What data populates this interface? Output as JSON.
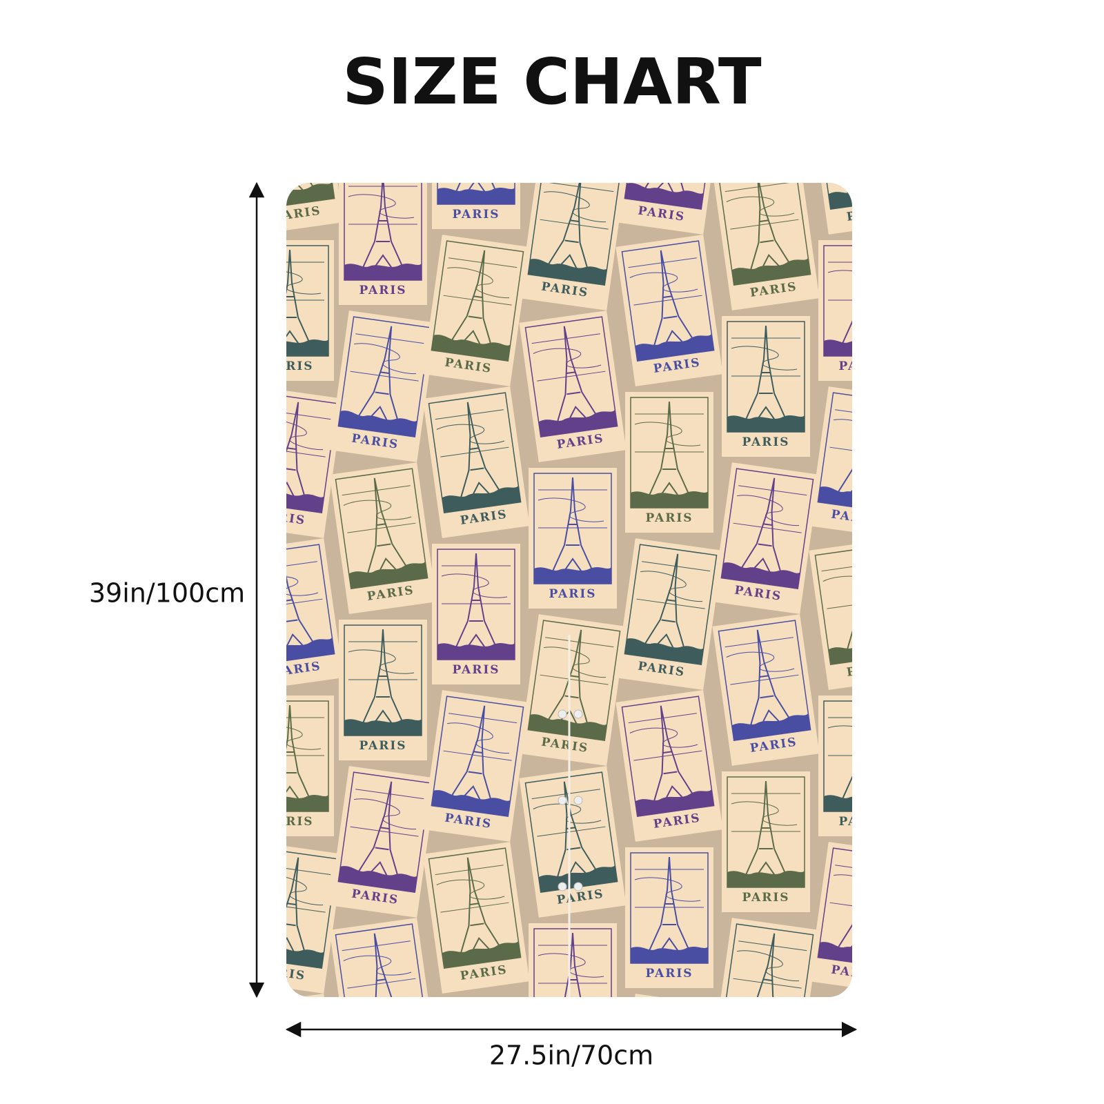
{
  "header": {
    "title": "SIZE CHART"
  },
  "dimensions": {
    "height_label": "39in/100cm",
    "width_label": "27.5in/70cm"
  },
  "pattern": {
    "stamp_text": "PARIS"
  }
}
